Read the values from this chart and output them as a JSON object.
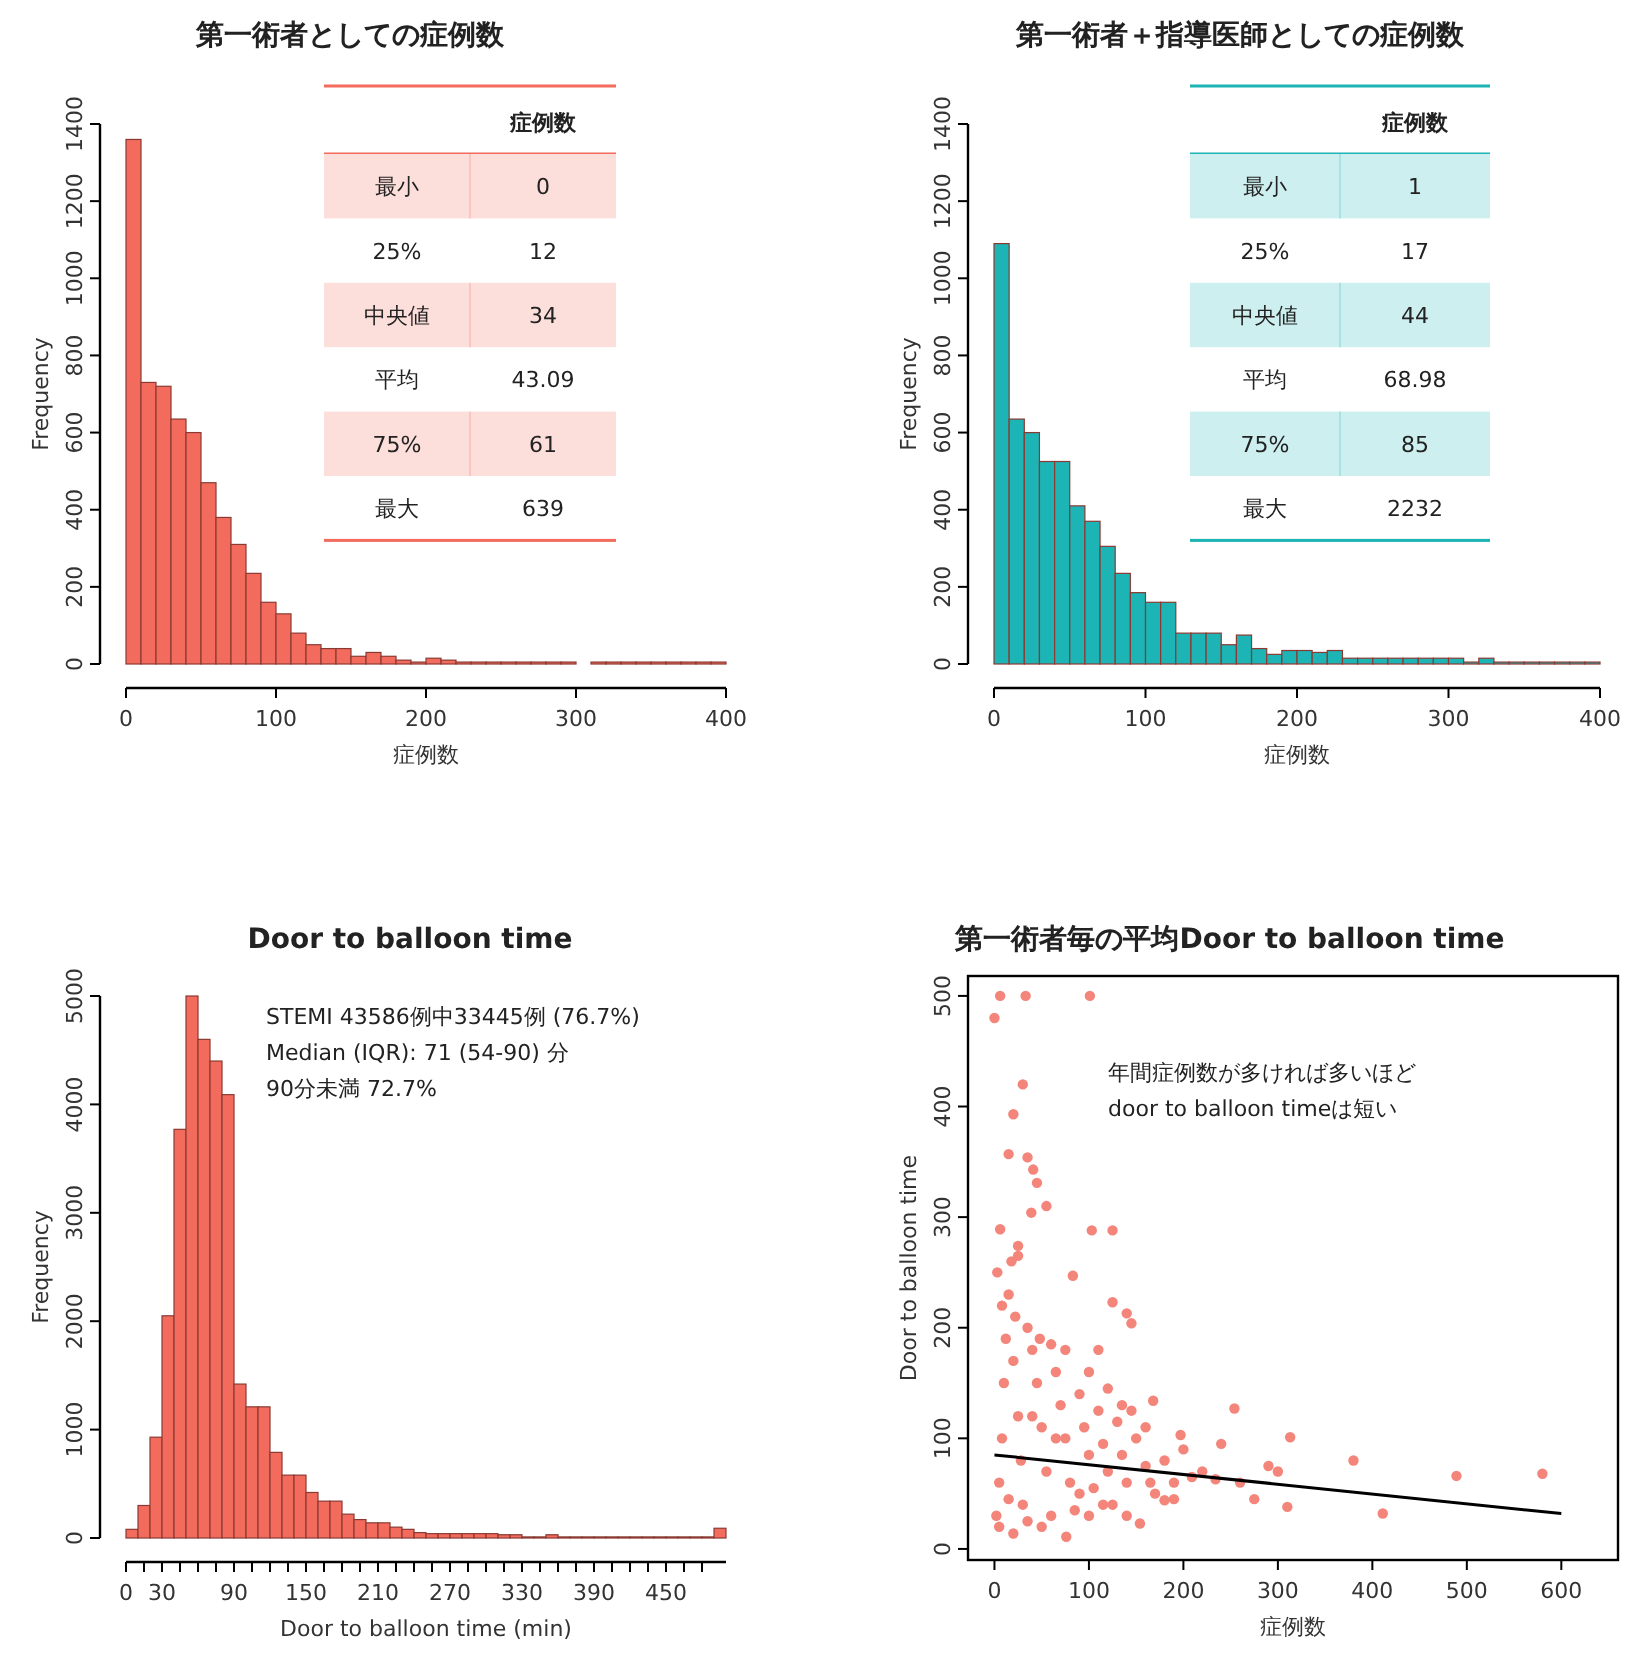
{
  "chart_data": [
    {
      "type": "histogram",
      "title": "第一術者としての症例数",
      "xlabel": "症例数",
      "ylabel": "Frequency",
      "bins": [
        0,
        10,
        20,
        30,
        40,
        50,
        60,
        70,
        80,
        90,
        100,
        110,
        120,
        130,
        140,
        150,
        160,
        170,
        180,
        190,
        200,
        210,
        220,
        230,
        240,
        250,
        260,
        270,
        280,
        290,
        300,
        310,
        320,
        330,
        340,
        350,
        360,
        370,
        380,
        390,
        400
      ],
      "values": [
        1360,
        730,
        720,
        635,
        600,
        470,
        380,
        310,
        235,
        160,
        130,
        80,
        50,
        40,
        40,
        20,
        30,
        20,
        10,
        5,
        15,
        10,
        5,
        5,
        5,
        5,
        5,
        5,
        5,
        5,
        0,
        5,
        5,
        5,
        5,
        5,
        5,
        5,
        5,
        5
      ],
      "color": "#f26b5c",
      "xlim": [
        0,
        400
      ],
      "xticks": [
        0,
        100,
        200,
        300,
        400
      ],
      "ylim": [
        0,
        1400
      ],
      "yticks": [
        0,
        200,
        400,
        600,
        800,
        1000,
        1200,
        1400
      ],
      "annotations": [
        "症例数",
        "最小",
        "0",
        "25%",
        "12",
        "中央値",
        "34",
        "平均",
        "43.09",
        "75%",
        "61",
        "最大",
        "639"
      ]
    },
    {
      "type": "histogram",
      "title": "第一術者＋指導医師としての症例数",
      "xlabel": "症例数",
      "ylabel": "Frequency",
      "bins": [
        0,
        10,
        20,
        30,
        40,
        50,
        60,
        70,
        80,
        90,
        100,
        110,
        120,
        130,
        140,
        150,
        160,
        170,
        180,
        190,
        200,
        210,
        220,
        230,
        240,
        250,
        260,
        270,
        280,
        290,
        300,
        310,
        320,
        330,
        340,
        350,
        360,
        370,
        380,
        390,
        400
      ],
      "values": [
        1090,
        635,
        600,
        525,
        525,
        410,
        370,
        305,
        235,
        185,
        160,
        160,
        80,
        80,
        80,
        50,
        75,
        40,
        25,
        35,
        35,
        30,
        35,
        15,
        15,
        15,
        15,
        15,
        15,
        15,
        15,
        5,
        15,
        5,
        5,
        5,
        5,
        5,
        5,
        5
      ],
      "color": "#1cb4b4",
      "xlim": [
        0,
        400
      ],
      "xticks": [
        0,
        100,
        200,
        300,
        400
      ],
      "ylim": [
        0,
        1400
      ],
      "yticks": [
        0,
        200,
        400,
        600,
        800,
        1000,
        1200,
        1400
      ],
      "annotations": [
        "症例数",
        "最小",
        "1",
        "25%",
        "17",
        "中央値",
        "44",
        "平均",
        "68.98",
        "75%",
        "85",
        "最大",
        "2232"
      ]
    },
    {
      "type": "histogram",
      "title": "Door to balloon time",
      "xlabel": "Door to balloon time (min)",
      "ylabel": "Frequency",
      "bins": [
        0,
        10,
        20,
        30,
        40,
        50,
        60,
        70,
        80,
        90,
        100,
        110,
        120,
        130,
        140,
        150,
        160,
        170,
        180,
        190,
        200,
        210,
        220,
        230,
        240,
        250,
        260,
        270,
        280,
        290,
        300,
        310,
        320,
        330,
        340,
        350,
        360,
        370,
        380,
        390,
        400,
        410,
        420,
        430,
        440,
        450,
        460,
        470,
        480,
        490,
        500
      ],
      "values": [
        80,
        300,
        930,
        2050,
        3770,
        5000,
        4600,
        4400,
        4090,
        1420,
        1210,
        1210,
        790,
        580,
        580,
        420,
        340,
        340,
        220,
        170,
        140,
        140,
        100,
        80,
        50,
        40,
        40,
        40,
        40,
        40,
        40,
        30,
        30,
        10,
        10,
        30,
        10,
        10,
        10,
        10,
        10,
        10,
        10,
        10,
        10,
        10,
        10,
        10,
        10,
        90
      ],
      "color": "#f26b5c",
      "xlim": [
        0,
        500
      ],
      "ylim": [
        0,
        5000
      ],
      "yticks": [
        0,
        1000,
        2000,
        3000,
        4000,
        5000
      ],
      "xticks": [
        0,
        {
          "value": 15,
          "label": null
        },
        30,
        {
          "value": 45,
          "label": null
        },
        {
          "value": 60,
          "label": null
        },
        {
          "value": 75,
          "label": null
        },
        90,
        {
          "value": 105,
          "label": null
        },
        {
          "value": 120,
          "label": null
        },
        {
          "value": 135,
          "label": null
        },
        150,
        {
          "value": 165,
          "label": null
        },
        {
          "value": 180,
          "label": null
        },
        {
          "value": 195,
          "label": null
        },
        210,
        {
          "value": 225,
          "label": null
        },
        {
          "value": 240,
          "label": null
        },
        {
          "value": 255,
          "label": null
        },
        270,
        {
          "value": 285,
          "label": null
        },
        {
          "value": 300,
          "label": null
        },
        {
          "value": 315,
          "label": null
        },
        330,
        {
          "value": 345,
          "label": null
        },
        {
          "value": 360,
          "label": null
        },
        {
          "value": 375,
          "label": null
        },
        390,
        {
          "value": 405,
          "label": null
        },
        {
          "value": 420,
          "label": null
        },
        {
          "value": 435,
          "label": null
        },
        450,
        {
          "value": 465,
          "label": null
        },
        {
          "value": 480,
          "label": null
        }
      ],
      "annotations": [
        "STEMI 43586例中33445例 (76.7%)",
        "Median (IQR): 71 (54-90) 分",
        "90分未満 72.7%"
      ]
    },
    {
      "type": "scatter",
      "title": "第一術者毎の平均Door to balloon time",
      "xlabel": "症例数",
      "ylabel": "Door to balloon time",
      "xlim": [
        -28,
        660
      ],
      "xticks": [
        0,
        100,
        200,
        300,
        400,
        500,
        600
      ],
      "ylim": [
        -10,
        518
      ],
      "yticks": [
        0,
        100,
        200,
        300,
        400,
        500
      ],
      "annotations": [
        "年間症例数が多ければ多いほど",
        "door to balloon timeは短い"
      ],
      "series": [
        {
          "type": "scatter",
          "color": "#f4857a",
          "marker": "circle",
          "x": [
            0,
            6,
            33,
            101,
            30,
            20,
            15,
            35,
            41,
            45,
            39,
            55,
            6,
            103,
            125,
            25,
            83,
            125,
            145,
            140,
            168,
            197,
            254,
            313,
            380,
            411,
            489,
            580,
            209,
            234,
            275,
            310,
            154,
            76,
            20,
            180,
            2,
            5,
            8,
            10,
            12,
            15,
            3,
            20,
            25,
            28,
            30,
            35,
            40,
            45,
            50,
            55,
            60,
            65,
            70,
            75,
            80,
            85,
            90,
            95,
            100,
            105,
            110,
            115,
            120,
            125,
            130,
            135,
            140,
            150,
            160,
            170,
            180,
            190,
            200,
            220,
            240,
            260,
            290,
            300,
            18,
            25,
            8,
            22,
            48,
            60,
            35,
            50,
            100,
            75,
            100,
            110,
            120,
            135,
            145,
            160,
            5,
            15,
            40,
            65,
            90,
            115,
            140,
            165,
            190
          ],
          "values": [
            480,
            500,
            500,
            500,
            420,
            393,
            357,
            354,
            343,
            331,
            304,
            310,
            289,
            288,
            288,
            274,
            247,
            223,
            204,
            213,
            134,
            103,
            127,
            101,
            80,
            32,
            66,
            68,
            65,
            63,
            45,
            38,
            23,
            11,
            14,
            44,
            30,
            60,
            100,
            150,
            190,
            230,
            250,
            170,
            120,
            80,
            40,
            200,
            180,
            150,
            110,
            70,
            30,
            160,
            130,
            100,
            60,
            35,
            140,
            110,
            85,
            55,
            125,
            95,
            70,
            40,
            115,
            85,
            60,
            100,
            75,
            50,
            80,
            60,
            90,
            70,
            95,
            60,
            75,
            70,
            260,
            265,
            220,
            210,
            190,
            185,
            25,
            20,
            30,
            180,
            160,
            180,
            145,
            130,
            125,
            110,
            20,
            45,
            120,
            100,
            50,
            40,
            30,
            60,
            45
          ]
        },
        {
          "type": "line",
          "color": "#000000",
          "x": [
            0,
            600
          ],
          "values": [
            85,
            32
          ]
        }
      ]
    }
  ]
}
